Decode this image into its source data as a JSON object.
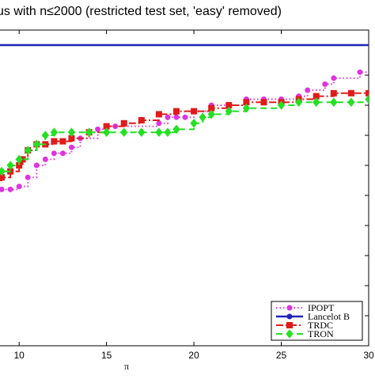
{
  "chart_data": {
    "type": "line",
    "title": "us with n≤2000 (restricted test set, 'easy' removed)",
    "xlabel": "π",
    "ylabel": "",
    "xlim": [
      8,
      30
    ],
    "ylim": [
      0,
      1.05
    ],
    "xticks": [
      10,
      15,
      20,
      25,
      30
    ],
    "xtick_labels": [
      "10",
      "15",
      "20",
      "25",
      "30"
    ],
    "grid": false,
    "legend_position": "bottom-right",
    "series": [
      {
        "name": "IPOPT",
        "color": "#e033e0",
        "style": "dotted",
        "marker": "circle",
        "x": [
          8,
          8.3,
          9,
          9.5,
          10,
          10.5,
          11,
          11.5,
          12,
          12.5,
          13,
          13.5,
          14.5,
          15,
          15.5,
          18,
          18.5,
          19,
          19.5,
          20,
          21,
          22,
          23,
          24,
          25,
          26,
          26.5,
          27.5,
          28,
          29.5,
          31
        ],
        "y": [
          0.52,
          0.52,
          0.52,
          0.52,
          0.53,
          0.56,
          0.6,
          0.62,
          0.64,
          0.64,
          0.66,
          0.69,
          0.72,
          0.73,
          0.73,
          0.74,
          0.76,
          0.76,
          0.76,
          0.78,
          0.8,
          0.8,
          0.82,
          0.82,
          0.82,
          0.83,
          0.85,
          0.87,
          0.89,
          0.91,
          0.91
        ]
      },
      {
        "name": "Lancelot B",
        "color": "#1f24b8",
        "style": "solid",
        "marker": "circle",
        "x": [
          8,
          31
        ],
        "y": [
          1.0,
          1.0
        ]
      },
      {
        "name": "TRDC",
        "color": "#e01b1b",
        "style": "dashdot",
        "marker": "square",
        "x": [
          8,
          8.5,
          9,
          9.5,
          10,
          10.2,
          10.5,
          11,
          11.5,
          12,
          12.5,
          13,
          14,
          15,
          16,
          17,
          18,
          19,
          20,
          21,
          22,
          23,
          24,
          25,
          26,
          27,
          28,
          29,
          30,
          31
        ],
        "y": [
          0.55,
          0.55,
          0.56,
          0.58,
          0.6,
          0.62,
          0.65,
          0.67,
          0.67,
          0.68,
          0.68,
          0.69,
          0.71,
          0.73,
          0.74,
          0.75,
          0.77,
          0.78,
          0.78,
          0.79,
          0.8,
          0.81,
          0.81,
          0.81,
          0.82,
          0.83,
          0.84,
          0.84,
          0.84,
          0.84
        ]
      },
      {
        "name": "TRON",
        "color": "#22e022",
        "style": "dashed",
        "marker": "diamond",
        "x": [
          8,
          9,
          9.5,
          10,
          10.5,
          11,
          11.5,
          12,
          13,
          14,
          15,
          16,
          17,
          18,
          18.5,
          19,
          20,
          20.5,
          21,
          22,
          23,
          25,
          26,
          27,
          28,
          29,
          30,
          31
        ],
        "y": [
          0.58,
          0.58,
          0.6,
          0.62,
          0.65,
          0.67,
          0.7,
          0.71,
          0.71,
          0.71,
          0.71,
          0.71,
          0.71,
          0.71,
          0.71,
          0.72,
          0.74,
          0.76,
          0.77,
          0.78,
          0.79,
          0.8,
          0.81,
          0.81,
          0.81,
          0.81,
          0.82,
          0.82
        ]
      }
    ]
  }
}
